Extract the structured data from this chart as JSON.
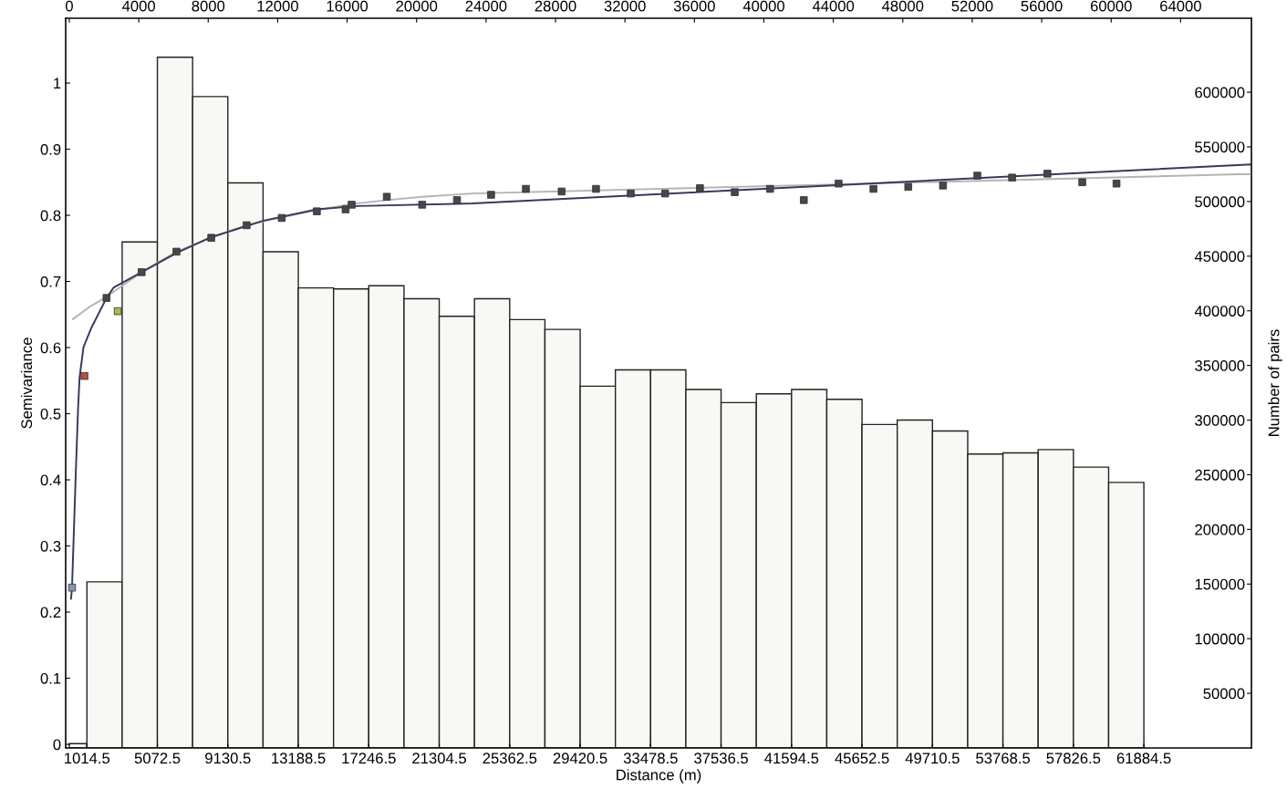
{
  "chart_data": {
    "type": "histogram",
    "xlabel": "Distance (m)",
    "ylabel": "Semivariance",
    "y2label": "Number of pairs",
    "xlim": [
      -209,
      68078
    ],
    "xticks": [
      1014.5,
      5072.5,
      9130.5,
      13188.5,
      17246.5,
      21304.5,
      25362.5,
      29420.5,
      33478.5,
      37536.5,
      41594.5,
      45652.5,
      49710.5,
      53768.5,
      57826.5,
      61884.5
    ],
    "x2lim": [
      -209,
      68078
    ],
    "x2ticks": [
      0,
      4000,
      8000,
      12000,
      16000,
      20000,
      24000,
      28000,
      32000,
      36000,
      40000,
      44000,
      48000,
      52000,
      56000,
      60000,
      64000
    ],
    "ylim": [
      -0.0055,
      1.098
    ],
    "yticks": [
      0,
      0.1,
      0.2,
      0.3,
      0.4,
      0.5,
      0.6,
      0.7,
      0.8,
      0.9,
      1
    ],
    "y2lim": [
      0,
      667700
    ],
    "y2ticks": [
      50000,
      100000,
      150000,
      200000,
      250000,
      300000,
      350000,
      400000,
      450000,
      500000,
      550000,
      600000
    ],
    "grid": false,
    "series": [
      {
        "axis": "y2",
        "color": "#f8f8f4",
        "bins": [
          0,
          1014.5,
          3043.5,
          5072.5,
          7101.5,
          9130.5,
          11159.5,
          13188.5,
          15217.5,
          17246.5,
          19275.5,
          21304.5,
          23333.5,
          25362.5,
          27391.5,
          29420.5,
          31449.5,
          33478.5,
          35507.5,
          37536.5,
          39565.5,
          41594.5,
          43623.5,
          45652.5,
          47681.5,
          49710.5,
          51739.5,
          53768.5,
          55797.5,
          57826.5,
          59855.5,
          61884.5
        ],
        "values": [
          4000,
          152000,
          463000,
          632000,
          596000,
          517000,
          454000,
          421000,
          420000,
          423000,
          411000,
          395000,
          411000,
          392000,
          383000,
          331000,
          346000,
          346000,
          328000,
          316000,
          324000,
          328000,
          319000,
          296000,
          300000,
          290000,
          269000,
          270000,
          273000,
          257000,
          243000
        ]
      },
      {
        "type": "line",
        "marker": "none",
        "color": "#b4b4b4",
        "x": [
          209,
          1200,
          2144,
          4166,
          6170,
          8174,
          10213,
          12235,
          14257,
          16261,
          18285,
          20323,
          23216,
          67366,
          68078
        ],
        "values": [
          0.643,
          0.662,
          0.677,
          0.714,
          0.745,
          0.766,
          0.785,
          0.797,
          0.808,
          0.817,
          0.823,
          0.828,
          0.833,
          0.862,
          0.862
        ]
      },
      {
        "type": "line",
        "marker": "none",
        "color": "#353a5c",
        "x": [
          100,
          157,
          382,
          507,
          593,
          820,
          1255,
          2144,
          2562,
          4166,
          6170,
          8174,
          11190,
          14257,
          16593,
          23216,
          45281,
          68078
        ],
        "values": [
          0.22,
          0.237,
          0.417,
          0.509,
          0.555,
          0.601,
          0.629,
          0.675,
          0.691,
          0.714,
          0.743,
          0.767,
          0.792,
          0.809,
          0.814,
          0.818,
          0.847,
          0.877
        ]
      },
      {
        "type": "scatter",
        "marker": "square",
        "colors": [
          "#8a96b4",
          "#c04a40",
          "#a8b850",
          "#474747",
          "#474747",
          "#474747",
          "#474747",
          "#474747",
          "#474747",
          "#474747",
          "#474747",
          "#474747",
          "#474747",
          "#474747",
          "#474747",
          "#474747",
          "#474747",
          "#474747",
          "#474747",
          "#474747",
          "#474747",
          "#474747",
          "#474747",
          "#474747",
          "#474747",
          "#474747",
          "#474747",
          "#474747",
          "#474747",
          "#474747",
          "#474747",
          "#474747",
          "#474747",
          "#474747"
        ],
        "x": [
          157,
          872,
          2789,
          2144,
          4166,
          6170,
          8174,
          10213,
          12235,
          14257,
          15913,
          16261,
          18285,
          20323,
          22327,
          24290,
          26295,
          28355,
          30333,
          32335,
          34312,
          36319,
          38322,
          40355,
          42301,
          44304,
          46311,
          48314,
          50317,
          52293,
          54296,
          56329,
          58336,
          60308
        ],
        "values": [
          0.237,
          0.557,
          0.655,
          0.675,
          0.714,
          0.745,
          0.766,
          0.785,
          0.796,
          0.806,
          0.809,
          0.816,
          0.828,
          0.816,
          0.823,
          0.831,
          0.84,
          0.836,
          0.84,
          0.833,
          0.833,
          0.841,
          0.835,
          0.84,
          0.823,
          0.848,
          0.84,
          0.843,
          0.845,
          0.86,
          0.857,
          0.863,
          0.85,
          0.848
        ]
      }
    ]
  }
}
